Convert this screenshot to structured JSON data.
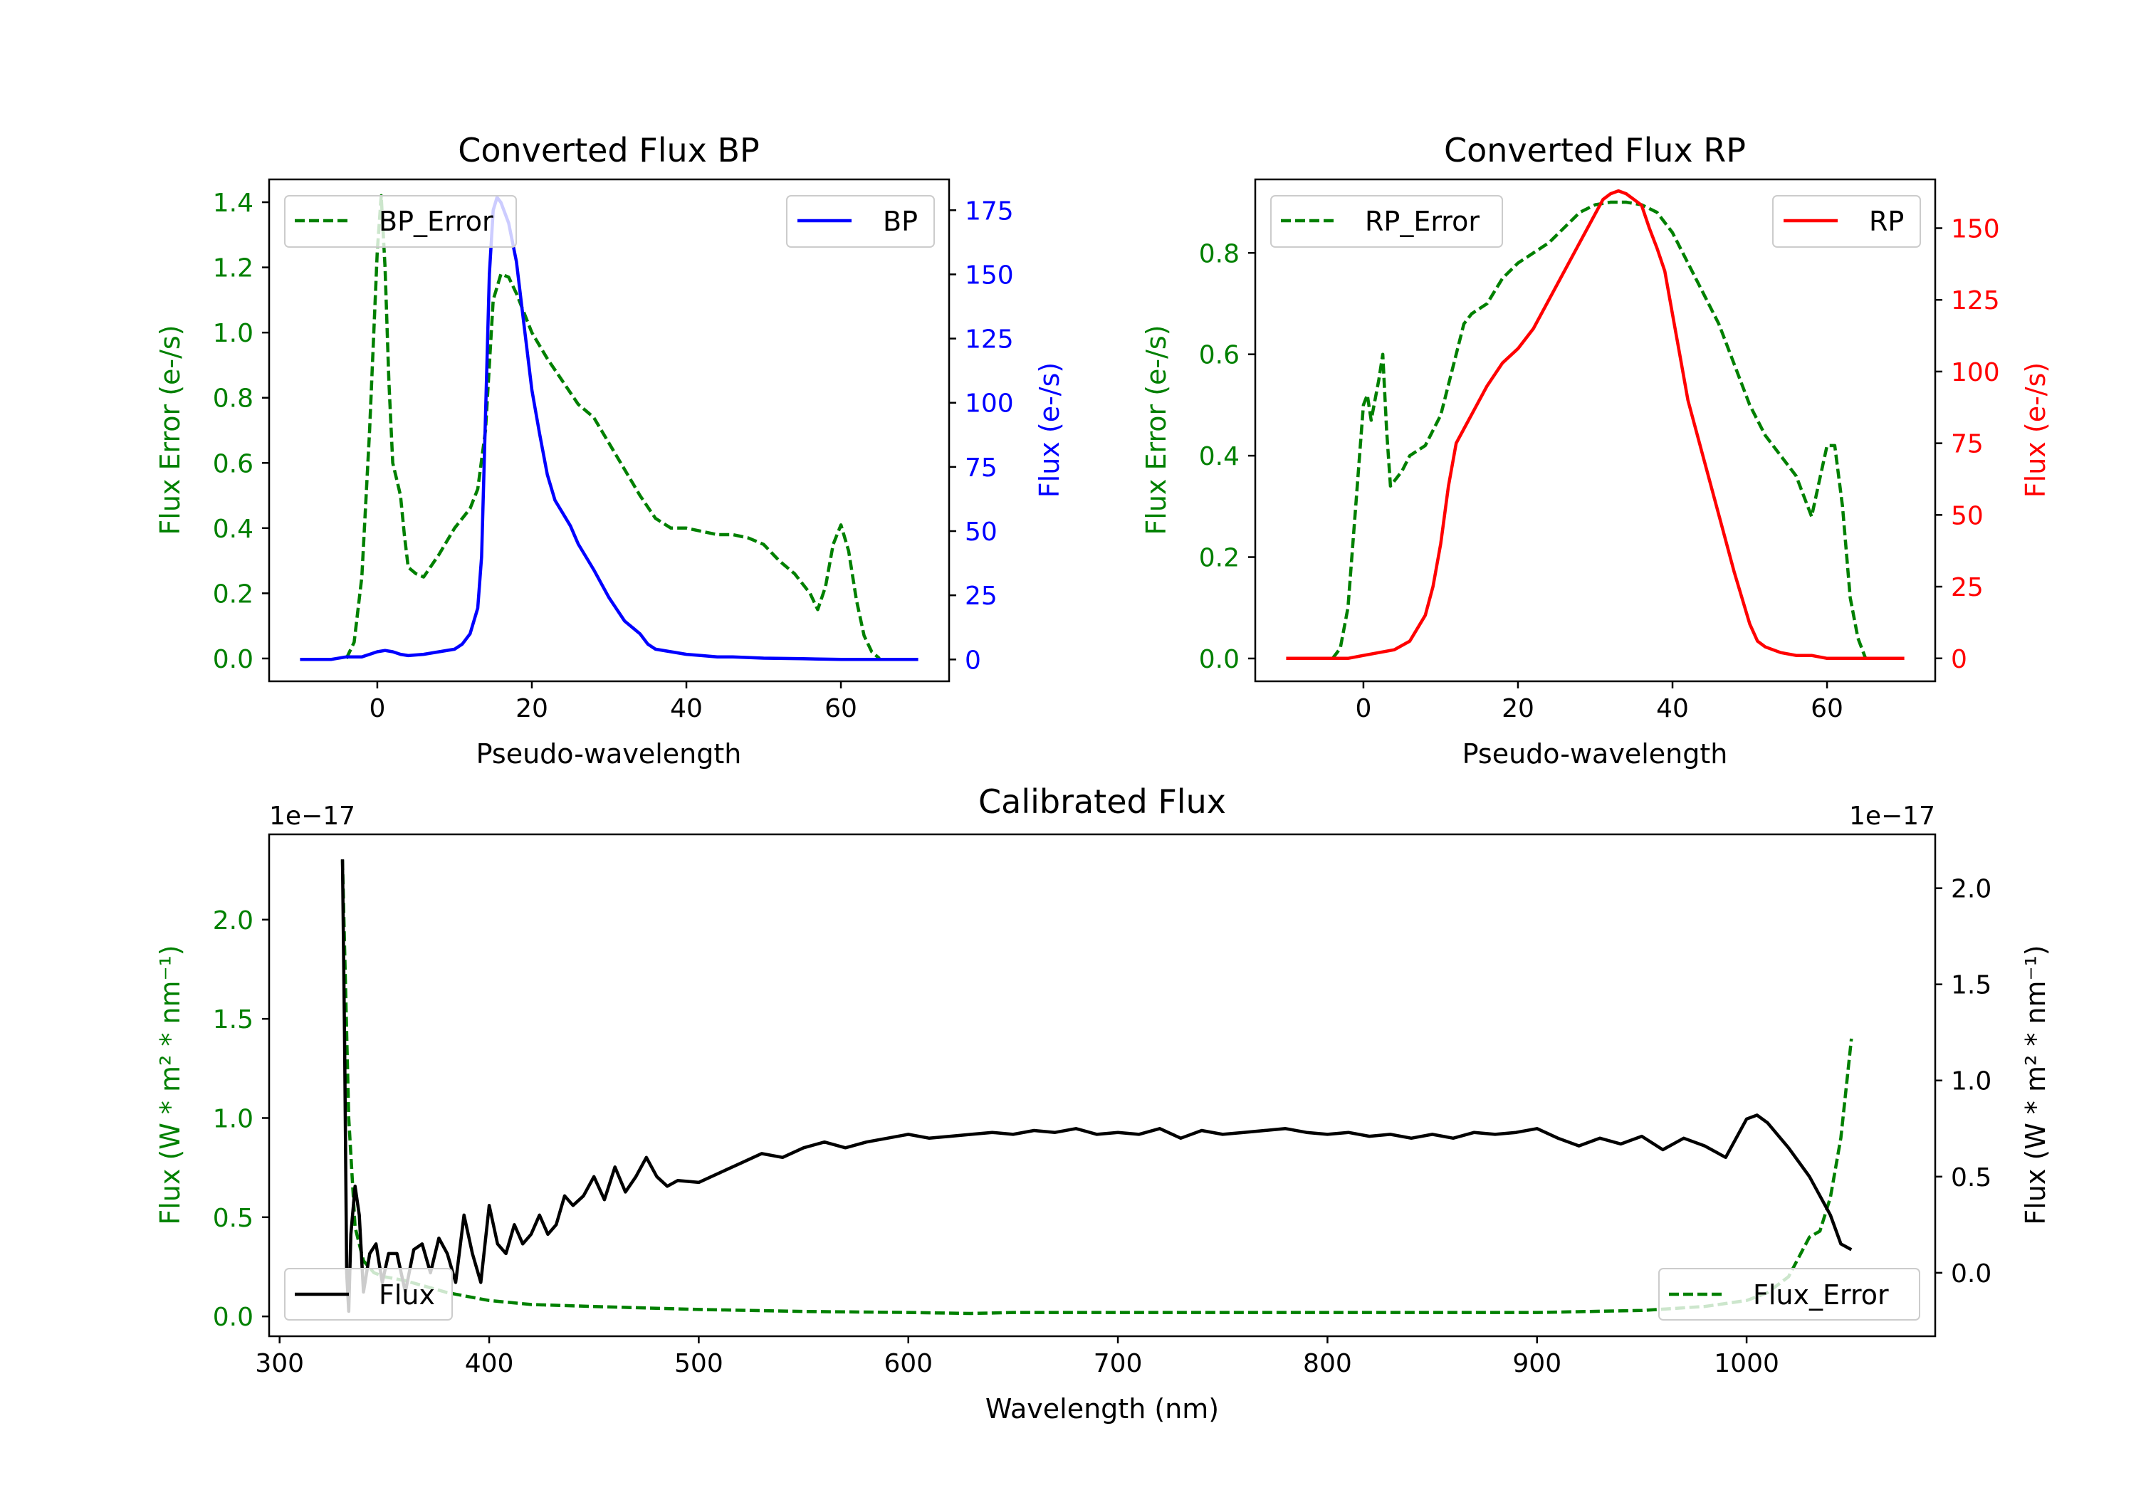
{
  "figure": {
    "colors": {
      "green": "#008000",
      "blue": "#0000ff",
      "red": "#ff0000",
      "black": "#000000"
    }
  },
  "chart_data": [
    {
      "id": "bp",
      "type": "line",
      "title": "Converted Flux BP",
      "xlabel": "Pseudo-wavelength",
      "ylabel_left": "Flux Error (e-/s)",
      "ylabel_right": "Flux (e-/s)",
      "xlim": [
        -14,
        74
      ],
      "ylim_left": [
        -0.07,
        1.47
      ],
      "ylim_right": [
        -8.5,
        187
      ],
      "xticks": [
        0,
        20,
        40,
        60
      ],
      "yticks_left": [
        0.0,
        0.2,
        0.4,
        0.6,
        0.8,
        1.0,
        1.2,
        1.4
      ],
      "yticks_left_labels": [
        "0.0",
        "0.2",
        "0.4",
        "0.6",
        "0.8",
        "1.0",
        "1.2",
        "1.4"
      ],
      "yticks_right": [
        0,
        25,
        50,
        75,
        100,
        125,
        150,
        175
      ],
      "yticks_right_labels": [
        "0",
        "25",
        "50",
        "75",
        "100",
        "125",
        "150",
        "175"
      ],
      "series": [
        {
          "name": "BP_Error",
          "axis": "left",
          "color": "#008000",
          "style": "dashed",
          "legend": "upper left",
          "x": [
            -4,
            -3,
            -2,
            -1,
            0,
            0.5,
            1,
            1.5,
            2,
            2.5,
            3,
            3.5,
            4,
            5,
            6,
            8,
            10,
            12,
            13,
            14,
            15,
            16,
            17,
            18,
            20,
            22,
            24,
            26,
            28,
            30,
            32,
            34,
            36,
            38,
            40,
            42,
            44,
            46,
            48,
            50,
            52,
            54,
            56,
            57,
            58,
            59,
            60,
            61,
            62,
            63,
            64,
            65
          ],
          "values": [
            0.0,
            0.05,
            0.25,
            0.7,
            1.25,
            1.42,
            1.2,
            0.85,
            0.6,
            0.55,
            0.5,
            0.38,
            0.28,
            0.26,
            0.25,
            0.32,
            0.4,
            0.46,
            0.52,
            0.7,
            1.1,
            1.18,
            1.17,
            1.12,
            1.0,
            0.92,
            0.85,
            0.78,
            0.74,
            0.66,
            0.58,
            0.5,
            0.43,
            0.4,
            0.4,
            0.39,
            0.38,
            0.38,
            0.37,
            0.35,
            0.3,
            0.26,
            0.2,
            0.15,
            0.22,
            0.35,
            0.41,
            0.33,
            0.18,
            0.07,
            0.02,
            0.0
          ]
        },
        {
          "name": "BP",
          "axis": "right",
          "color": "#0000ff",
          "style": "solid",
          "legend": "upper right",
          "x": [
            -10,
            -6,
            -4,
            -2,
            -1,
            0,
            1,
            2,
            3,
            4,
            6,
            8,
            10,
            11,
            12,
            13,
            13.5,
            14,
            14.5,
            15,
            15.5,
            16,
            17,
            18,
            19,
            20,
            21,
            22,
            23,
            24,
            25,
            26,
            28,
            30,
            32,
            34,
            35,
            36,
            38,
            40,
            42,
            44,
            46,
            50,
            55,
            60,
            65,
            70
          ],
          "values": [
            0,
            0,
            1,
            1,
            2,
            3,
            3.5,
            3,
            2,
            1.5,
            2,
            3,
            4,
            6,
            10,
            20,
            40,
            95,
            150,
            175,
            180,
            178,
            170,
            155,
            130,
            105,
            88,
            72,
            62,
            57,
            52,
            45,
            35,
            24,
            15,
            10,
            6,
            4,
            3,
            2,
            1.5,
            1,
            1,
            0.5,
            0.3,
            0,
            0,
            0
          ]
        }
      ]
    },
    {
      "id": "rp",
      "type": "line",
      "title": "Converted Flux RP",
      "xlabel": "Pseudo-wavelength",
      "ylabel_left": "Flux Error (e-/s)",
      "ylabel_right": "Flux (e-/s)",
      "xlim": [
        -14,
        74
      ],
      "ylim_left": [
        -0.045,
        0.945
      ],
      "ylim_right": [
        -8,
        167
      ],
      "xticks": [
        0,
        20,
        40,
        60
      ],
      "yticks_left": [
        0.0,
        0.2,
        0.4,
        0.6,
        0.8
      ],
      "yticks_left_labels": [
        "0.0",
        "0.2",
        "0.4",
        "0.6",
        "0.8"
      ],
      "yticks_right": [
        0,
        25,
        50,
        75,
        100,
        125,
        150
      ],
      "yticks_right_labels": [
        "0",
        "25",
        "50",
        "75",
        "100",
        "125",
        "150"
      ],
      "series": [
        {
          "name": "RP_Error",
          "axis": "left",
          "color": "#008000",
          "style": "dashed",
          "legend": "upper left",
          "x": [
            -4,
            -3,
            -2,
            -1,
            0,
            0.5,
            1,
            2,
            2.5,
            3,
            3.5,
            4,
            5,
            6,
            8,
            10,
            12,
            13,
            14,
            16,
            18,
            20,
            22,
            24,
            26,
            28,
            30,
            32,
            34,
            36,
            38,
            40,
            42,
            44,
            46,
            48,
            50,
            52,
            54,
            56,
            57,
            58,
            59,
            60,
            61,
            62,
            63,
            64,
            65
          ],
          "values": [
            0.0,
            0.02,
            0.1,
            0.3,
            0.5,
            0.52,
            0.47,
            0.55,
            0.6,
            0.45,
            0.34,
            0.35,
            0.37,
            0.4,
            0.42,
            0.48,
            0.6,
            0.66,
            0.68,
            0.7,
            0.75,
            0.78,
            0.8,
            0.82,
            0.85,
            0.88,
            0.895,
            0.9,
            0.9,
            0.895,
            0.88,
            0.84,
            0.78,
            0.72,
            0.66,
            0.58,
            0.5,
            0.44,
            0.4,
            0.36,
            0.32,
            0.28,
            0.35,
            0.42,
            0.42,
            0.3,
            0.12,
            0.04,
            0.0
          ]
        },
        {
          "name": "RP",
          "axis": "right",
          "color": "#ff0000",
          "style": "solid",
          "legend": "upper right",
          "x": [
            -10,
            -2,
            0,
            2,
            4,
            6,
            8,
            9,
            10,
            11,
            12,
            13,
            14,
            16,
            18,
            20,
            22,
            24,
            26,
            28,
            30,
            31,
            32,
            33,
            34,
            35,
            36,
            37,
            38,
            39,
            40,
            41,
            42,
            44,
            46,
            48,
            50,
            51,
            52,
            54,
            56,
            58,
            60,
            62,
            65,
            70
          ],
          "values": [
            0,
            0,
            1,
            2,
            3,
            6,
            15,
            25,
            40,
            60,
            75,
            80,
            85,
            95,
            103,
            108,
            115,
            125,
            135,
            145,
            155,
            160,
            162,
            163,
            162,
            160,
            158,
            150,
            143,
            135,
            120,
            105,
            90,
            70,
            50,
            30,
            12,
            6,
            4,
            2,
            1,
            1,
            0,
            0,
            0,
            0
          ]
        }
      ]
    },
    {
      "id": "calibrated",
      "type": "line",
      "title": "Calibrated Flux",
      "xlabel": "Wavelength (nm)",
      "ylabel_left": "Flux (W * m² * nm⁻¹)",
      "ylabel_right": "Flux (W * m² * nm⁻¹)",
      "left_offset_text": "1e−17",
      "right_offset_text": "1e−17",
      "xlim": [
        295,
        1090
      ],
      "ylim_left": [
        -0.1,
        2.43
      ],
      "ylim_right": [
        -0.33,
        2.28
      ],
      "xticks": [
        300,
        400,
        500,
        600,
        700,
        800,
        900,
        1000
      ],
      "yticks_left": [
        0.0,
        0.5,
        1.0,
        1.5,
        2.0
      ],
      "yticks_left_labels": [
        "0.0",
        "0.5",
        "1.0",
        "1.5",
        "2.0"
      ],
      "yticks_right": [
        0.0,
        0.5,
        1.0,
        1.5,
        2.0
      ],
      "yticks_right_labels": [
        "0.0",
        "0.5",
        "1.0",
        "1.5",
        "2.0"
      ],
      "series": [
        {
          "name": "Flux_Error",
          "axis": "left",
          "color": "#008000",
          "style": "dashed",
          "legend": "lower right",
          "x": [
            330,
            333,
            336,
            340,
            345,
            350,
            360,
            370,
            380,
            390,
            400,
            420,
            450,
            500,
            550,
            600,
            630,
            650,
            700,
            750,
            800,
            850,
            900,
            950,
            980,
            1000,
            1010,
            1020,
            1025,
            1030,
            1035,
            1040,
            1045,
            1050
          ],
          "values": [
            2.3,
            1.0,
            0.45,
            0.28,
            0.22,
            0.2,
            0.18,
            0.15,
            0.12,
            0.1,
            0.08,
            0.06,
            0.05,
            0.035,
            0.025,
            0.02,
            0.015,
            0.02,
            0.02,
            0.02,
            0.02,
            0.02,
            0.02,
            0.03,
            0.05,
            0.08,
            0.12,
            0.2,
            0.3,
            0.4,
            0.43,
            0.6,
            0.9,
            1.4
          ]
        },
        {
          "name": "Flux",
          "axis": "right",
          "color": "#000000",
          "style": "solid",
          "legend": "lower left",
          "x": [
            330,
            331,
            332,
            333,
            334,
            336,
            338,
            340,
            343,
            346,
            349,
            352,
            356,
            360,
            364,
            368,
            372,
            376,
            380,
            384,
            388,
            392,
            396,
            400,
            404,
            408,
            412,
            416,
            420,
            424,
            428,
            432,
            436,
            440,
            445,
            450,
            455,
            460,
            465,
            470,
            475,
            480,
            485,
            490,
            500,
            510,
            520,
            530,
            540,
            550,
            560,
            570,
            580,
            590,
            600,
            610,
            620,
            630,
            640,
            650,
            660,
            670,
            680,
            690,
            700,
            710,
            720,
            730,
            740,
            750,
            760,
            770,
            780,
            790,
            800,
            810,
            820,
            830,
            840,
            850,
            860,
            870,
            880,
            890,
            900,
            910,
            920,
            930,
            940,
            950,
            960,
            970,
            980,
            990,
            1000,
            1005,
            1010,
            1020,
            1030,
            1035,
            1040,
            1045,
            1050
          ],
          "values": [
            2.15,
            1.2,
            0.0,
            -0.2,
            0.2,
            0.45,
            0.3,
            -0.1,
            0.1,
            0.15,
            -0.05,
            0.1,
            0.1,
            -0.1,
            0.12,
            0.15,
            0.0,
            0.18,
            0.1,
            -0.05,
            0.3,
            0.1,
            -0.05,
            0.35,
            0.15,
            0.1,
            0.25,
            0.15,
            0.2,
            0.3,
            0.2,
            0.25,
            0.4,
            0.35,
            0.4,
            0.5,
            0.38,
            0.55,
            0.42,
            0.5,
            0.6,
            0.5,
            0.45,
            0.48,
            0.47,
            0.52,
            0.57,
            0.62,
            0.6,
            0.65,
            0.68,
            0.65,
            0.68,
            0.7,
            0.72,
            0.7,
            0.71,
            0.72,
            0.73,
            0.72,
            0.74,
            0.73,
            0.75,
            0.72,
            0.73,
            0.72,
            0.75,
            0.7,
            0.74,
            0.72,
            0.73,
            0.74,
            0.75,
            0.73,
            0.72,
            0.73,
            0.71,
            0.72,
            0.7,
            0.72,
            0.7,
            0.73,
            0.72,
            0.73,
            0.75,
            0.7,
            0.66,
            0.7,
            0.67,
            0.71,
            0.64,
            0.7,
            0.66,
            0.6,
            0.8,
            0.82,
            0.78,
            0.65,
            0.5,
            0.4,
            0.3,
            0.15,
            0.12
          ]
        }
      ]
    }
  ]
}
